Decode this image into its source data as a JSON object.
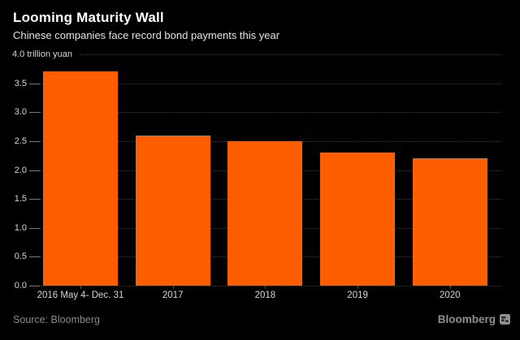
{
  "chart": {
    "title": "Looming Maturity Wall",
    "subtitle": "Chinese companies face record bond payments this year",
    "unit_label": "4.0 trillion yuan"
  },
  "chart_data": {
    "type": "bar",
    "title": "Looming Maturity Wall",
    "subtitle": "Chinese companies face record bond payments this year",
    "categories": [
      "2016 May 4- Dec. 31",
      "2017",
      "2018",
      "2019",
      "2020"
    ],
    "values": [
      3.7,
      2.6,
      2.5,
      2.3,
      2.2
    ],
    "xlabel": "",
    "ylabel": "trillion yuan",
    "ylim": [
      0,
      4.0
    ],
    "ytick_step": 0.5,
    "yticks": [
      "0.0",
      "0.5",
      "1.0",
      "1.5",
      "2.0",
      "2.5",
      "3.0",
      "3.5"
    ],
    "top_tick_label": "4.0 trillion yuan",
    "bar_color": "#FF5E00",
    "grid": "dotted-horizontal",
    "legend": "none"
  },
  "footer": {
    "source_label": "Source: Bloomberg",
    "brand_label": "Bloomberg",
    "logo_icon": "bloomberg-terminal-icon"
  },
  "colors": {
    "background": "#000000",
    "bar": "#FF5E00",
    "title_text": "#FFFFFF",
    "subtitle_text": "#E3E3E3",
    "axis_text": "#D6D6D6",
    "gridline": "#3A3A3A",
    "axis_tick": "#7A7A7A",
    "x_tick": "#5A5A5A",
    "source_text": "#8A8A8A",
    "brand_text": "#8F8F8F"
  }
}
